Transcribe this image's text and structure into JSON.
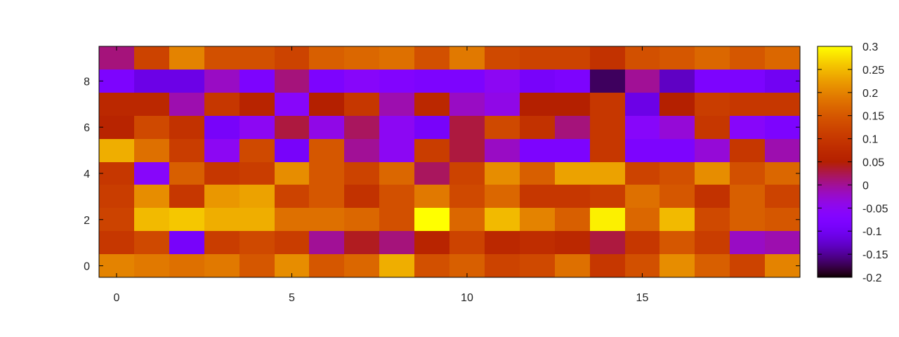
{
  "chart_data": {
    "type": "heatmap",
    "title": "",
    "xlabel": "",
    "ylabel": "",
    "x_range": [
      -0.5,
      19.5
    ],
    "y_range": [
      -0.5,
      9.5
    ],
    "x_ticks": [
      0,
      5,
      10,
      15
    ],
    "y_ticks": [
      0,
      2,
      4,
      6,
      8
    ],
    "colorbar": {
      "range": [
        -0.2,
        0.3
      ],
      "ticks": [
        0.3,
        0.25,
        0.2,
        0.15,
        0.1,
        0.05,
        0,
        -0.05,
        -0.1,
        -0.15,
        -0.2
      ],
      "tick_labels": [
        "0.3",
        "0.25",
        "0.2",
        "0.15",
        "0.1",
        "0.05",
        "0",
        "-0.05",
        "-0.1",
        "-0.15",
        "-0.2"
      ],
      "palette": "gnuplot (black-blue-purple-red-orange-yellow)"
    },
    "grid": false,
    "values": [
      [
        0.2,
        0.19,
        0.18,
        0.19,
        0.15,
        0.21,
        0.15,
        0.17,
        0.24,
        0.14,
        0.16,
        0.12,
        0.13,
        0.18,
        0.1,
        0.14,
        0.21,
        0.16,
        0.12,
        0.2
      ],
      [
        0.1,
        0.13,
        -0.09,
        0.11,
        0.13,
        0.11,
        0.0,
        0.04,
        0.01,
        0.06,
        0.12,
        0.07,
        0.08,
        0.07,
        0.03,
        0.1,
        0.15,
        0.11,
        -0.02,
        -0.01
      ],
      [
        0.12,
        0.25,
        0.26,
        0.24,
        0.24,
        0.18,
        0.18,
        0.17,
        0.14,
        0.3,
        0.17,
        0.25,
        0.2,
        0.16,
        0.29,
        0.17,
        0.25,
        0.13,
        0.16,
        0.15
      ],
      [
        0.11,
        0.21,
        0.1,
        0.22,
        0.23,
        0.12,
        0.15,
        0.09,
        0.14,
        0.19,
        0.13,
        0.17,
        0.1,
        0.1,
        0.11,
        0.18,
        0.15,
        0.09,
        0.16,
        0.12
      ],
      [
        0.1,
        -0.06,
        0.16,
        0.1,
        0.11,
        0.21,
        0.15,
        0.12,
        0.17,
        0.02,
        0.12,
        0.21,
        0.16,
        0.23,
        0.23,
        0.12,
        0.14,
        0.21,
        0.14,
        0.17
      ],
      [
        0.24,
        0.18,
        0.11,
        -0.05,
        0.13,
        -0.09,
        0.15,
        0.0,
        -0.05,
        0.11,
        0.03,
        -0.02,
        -0.08,
        -0.08,
        0.1,
        -0.08,
        -0.08,
        -0.03,
        0.1,
        -0.01
      ],
      [
        0.06,
        0.13,
        0.09,
        -0.09,
        -0.05,
        0.03,
        -0.04,
        0.02,
        -0.05,
        -0.09,
        0.03,
        0.13,
        0.09,
        0.01,
        0.1,
        -0.06,
        -0.03,
        0.1,
        -0.06,
        -0.08
      ],
      [
        0.07,
        0.07,
        -0.01,
        0.1,
        0.06,
        -0.06,
        0.05,
        0.1,
        -0.01,
        0.07,
        -0.02,
        -0.04,
        0.05,
        0.05,
        0.1,
        -0.11,
        0.05,
        0.11,
        0.1,
        0.1
      ],
      [
        -0.08,
        -0.11,
        -0.11,
        -0.02,
        -0.08,
        0.01,
        -0.08,
        -0.06,
        -0.07,
        -0.08,
        -0.08,
        -0.05,
        -0.09,
        -0.08,
        -0.17,
        0.0,
        -0.13,
        -0.08,
        -0.08,
        -0.1
      ],
      [
        0.01,
        0.12,
        0.2,
        0.14,
        0.14,
        0.12,
        0.16,
        0.17,
        0.18,
        0.14,
        0.19,
        0.13,
        0.12,
        0.12,
        0.09,
        0.14,
        0.15,
        0.17,
        0.15,
        0.17
      ]
    ]
  }
}
